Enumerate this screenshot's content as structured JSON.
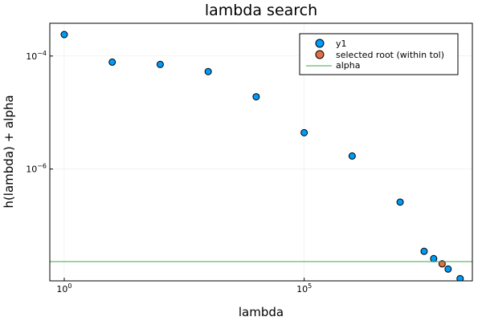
{
  "chart_data": {
    "type": "scatter",
    "title": "lambda search",
    "xlabel": "lambda",
    "ylabel": "h(lambda) + alpha",
    "xscale": "log10",
    "yscale": "log10",
    "xlim": [
      0.5,
      320000000.0
    ],
    "ylim": [
      1.05e-08,
      0.00038
    ],
    "grid": true,
    "legend_position": "top-right",
    "x_ticks": [
      {
        "value": 1,
        "base": "10",
        "exponent": "0"
      },
      {
        "value": 100000,
        "base": "10",
        "exponent": "5"
      }
    ],
    "y_ticks": [
      {
        "value": 0.0001,
        "base": "10",
        "exponent": "−4"
      },
      {
        "value": 1e-06,
        "base": "10",
        "exponent": "−6"
      }
    ],
    "series": [
      {
        "name": "y1",
        "kind": "scatter",
        "color": "#009af9",
        "points": [
          {
            "x": 1,
            "y": 0.00024
          },
          {
            "x": 10,
            "y": 7.8e-05
          },
          {
            "x": 100,
            "y": 7.1e-05
          },
          {
            "x": 1000,
            "y": 5.3e-05
          },
          {
            "x": 10000,
            "y": 1.9e-05
          },
          {
            "x": 100000,
            "y": 4.4e-06
          },
          {
            "x": 1000000,
            "y": 1.7e-06
          },
          {
            "x": 10000000,
            "y": 2.6e-07
          },
          {
            "x": 31600000,
            "y": 3.5e-08
          },
          {
            "x": 50000000,
            "y": 2.6e-08
          },
          {
            "x": 100000000,
            "y": 1.7e-08
          },
          {
            "x": 178000000,
            "y": 1.15e-08
          }
        ]
      },
      {
        "name": "selected root (within tol)",
        "kind": "scatter",
        "color": "#e26f46",
        "points": [
          {
            "x": 75000000,
            "y": 2.1e-08
          }
        ]
      },
      {
        "name": "alpha",
        "kind": "hline",
        "color": "#3da44d",
        "y": 2.3e-08
      }
    ]
  }
}
